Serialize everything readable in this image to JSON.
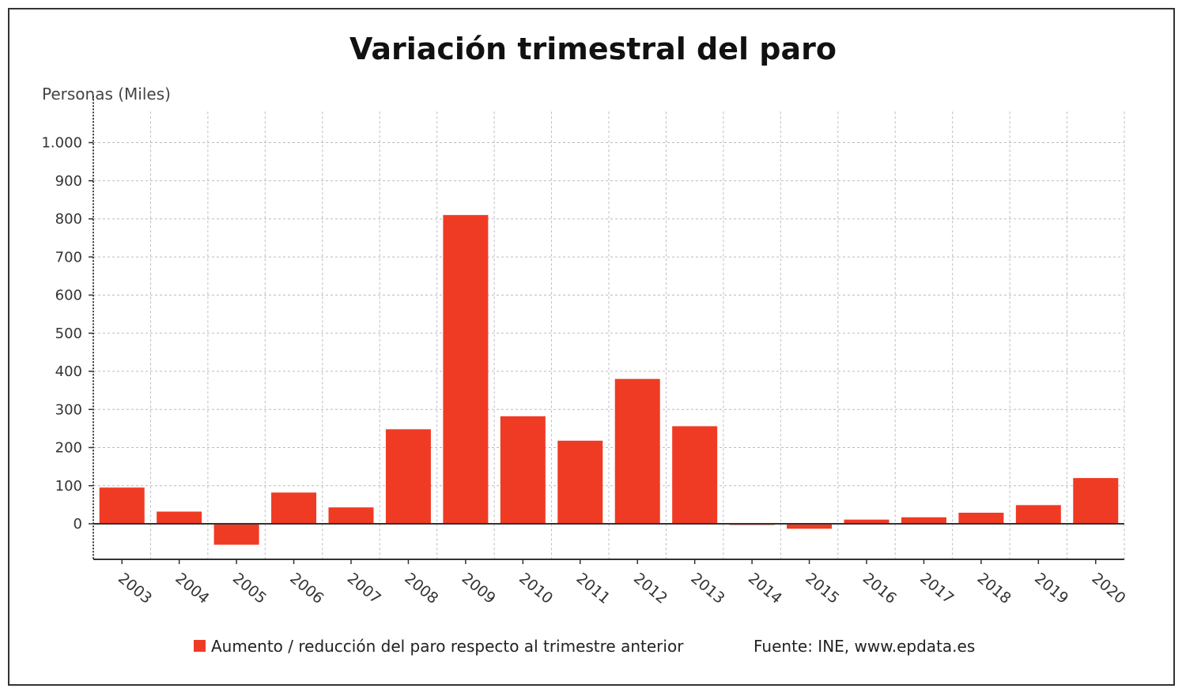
{
  "chart_data": {
    "type": "bar",
    "title": "Variación trimestral del paro",
    "ylabel": "Personas (Miles)",
    "categories": [
      "2003",
      "2004",
      "2005",
      "2006",
      "2007",
      "2008",
      "2009",
      "2010",
      "2011",
      "2012",
      "2013",
      "2014",
      "2015",
      "2016",
      "2017",
      "2018",
      "2019",
      "2020"
    ],
    "series": [
      {
        "name": "Aumento / reducción del paro respecto al trimestre anterior",
        "color": "#ef3b24",
        "values": [
          95,
          32,
          -55,
          82,
          43,
          248,
          810,
          282,
          218,
          380,
          256,
          -2,
          -13,
          11,
          17,
          29,
          49,
          120
        ]
      }
    ],
    "ylim": [
      -90,
      1050
    ],
    "yticks": [
      0,
      100,
      200,
      300,
      400,
      500,
      600,
      700,
      800,
      900,
      1000
    ],
    "ytick_labels": [
      "0",
      "100",
      "200",
      "300",
      "400",
      "500",
      "600",
      "700",
      "800",
      "900",
      "1.000"
    ],
    "grid": true,
    "legend_position": "bottom",
    "source": "Fuente: INE, www.epdata.es"
  }
}
